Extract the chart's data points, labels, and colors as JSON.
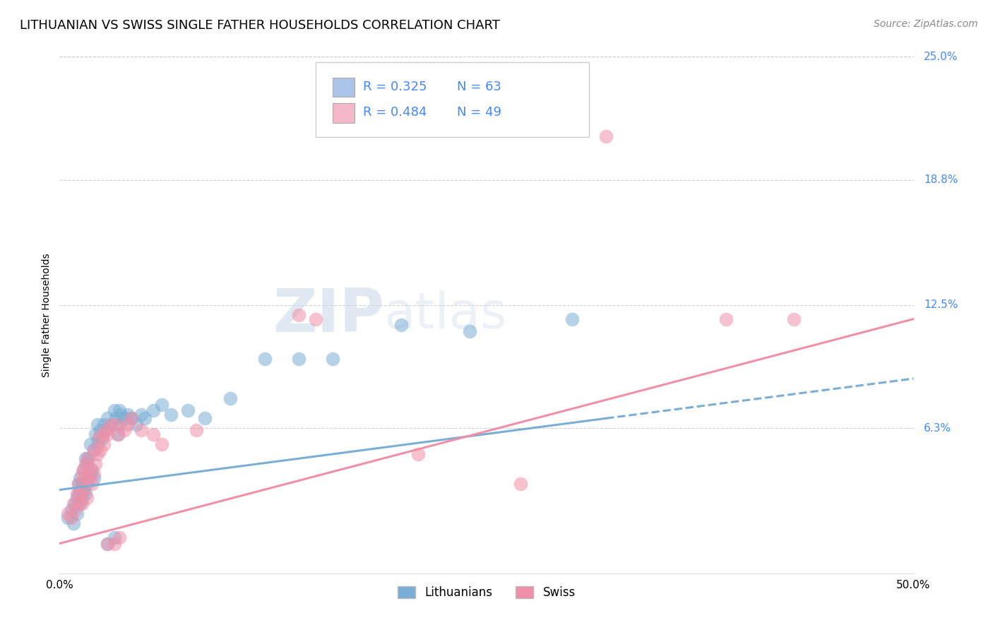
{
  "title": "LITHUANIAN VS SWISS SINGLE FATHER HOUSEHOLDS CORRELATION CHART",
  "source": "Source: ZipAtlas.com",
  "ylabel": "Single Father Households",
  "xlim": [
    0.0,
    0.5
  ],
  "ylim": [
    -0.01,
    0.25
  ],
  "ytick_labels": [
    "25.0%",
    "18.8%",
    "12.5%",
    "6.3%"
  ],
  "ytick_positions": [
    0.25,
    0.188,
    0.125,
    0.063
  ],
  "legend_entries": [
    {
      "label_r": "R = 0.325",
      "label_n": "N = 63",
      "color": "#aac4e8"
    },
    {
      "label_r": "R = 0.484",
      "label_n": "N = 49",
      "color": "#f4b8c8"
    }
  ],
  "watermark_zip": "ZIP",
  "watermark_atlas": "atlas",
  "background_color": "#ffffff",
  "grid_color": "#cccccc",
  "blue_color": "#7aaed4",
  "pink_color": "#f090a8",
  "label_color": "#4488ff",
  "blue_scatter": [
    [
      0.005,
      0.018
    ],
    [
      0.007,
      0.022
    ],
    [
      0.008,
      0.015
    ],
    [
      0.009,
      0.025
    ],
    [
      0.01,
      0.02
    ],
    [
      0.01,
      0.028
    ],
    [
      0.011,
      0.03
    ],
    [
      0.011,
      0.035
    ],
    [
      0.012,
      0.025
    ],
    [
      0.012,
      0.032
    ],
    [
      0.012,
      0.038
    ],
    [
      0.013,
      0.028
    ],
    [
      0.013,
      0.035
    ],
    [
      0.014,
      0.032
    ],
    [
      0.014,
      0.042
    ],
    [
      0.015,
      0.03
    ],
    [
      0.015,
      0.038
    ],
    [
      0.015,
      0.048
    ],
    [
      0.016,
      0.035
    ],
    [
      0.016,
      0.045
    ],
    [
      0.017,
      0.038
    ],
    [
      0.017,
      0.048
    ],
    [
      0.018,
      0.04
    ],
    [
      0.018,
      0.055
    ],
    [
      0.019,
      0.042
    ],
    [
      0.02,
      0.038
    ],
    [
      0.02,
      0.052
    ],
    [
      0.021,
      0.06
    ],
    [
      0.022,
      0.055
    ],
    [
      0.022,
      0.065
    ],
    [
      0.023,
      0.058
    ],
    [
      0.024,
      0.062
    ],
    [
      0.025,
      0.058
    ],
    [
      0.026,
      0.065
    ],
    [
      0.027,
      0.062
    ],
    [
      0.028,
      0.005
    ],
    [
      0.028,
      0.068
    ],
    [
      0.03,
      0.065
    ],
    [
      0.032,
      0.008
    ],
    [
      0.032,
      0.072
    ],
    [
      0.033,
      0.068
    ],
    [
      0.034,
      0.06
    ],
    [
      0.035,
      0.065
    ],
    [
      0.035,
      0.072
    ],
    [
      0.036,
      0.07
    ],
    [
      0.038,
      0.068
    ],
    [
      0.04,
      0.07
    ],
    [
      0.042,
      0.068
    ],
    [
      0.045,
      0.065
    ],
    [
      0.048,
      0.07
    ],
    [
      0.05,
      0.068
    ],
    [
      0.055,
      0.072
    ],
    [
      0.06,
      0.075
    ],
    [
      0.065,
      0.07
    ],
    [
      0.075,
      0.072
    ],
    [
      0.085,
      0.068
    ],
    [
      0.1,
      0.078
    ],
    [
      0.12,
      0.098
    ],
    [
      0.14,
      0.098
    ],
    [
      0.16,
      0.098
    ],
    [
      0.2,
      0.115
    ],
    [
      0.24,
      0.112
    ],
    [
      0.3,
      0.118
    ]
  ],
  "pink_scatter": [
    [
      0.005,
      0.02
    ],
    [
      0.007,
      0.018
    ],
    [
      0.008,
      0.025
    ],
    [
      0.009,
      0.022
    ],
    [
      0.01,
      0.03
    ],
    [
      0.011,
      0.025
    ],
    [
      0.011,
      0.035
    ],
    [
      0.012,
      0.03
    ],
    [
      0.013,
      0.025
    ],
    [
      0.013,
      0.04
    ],
    [
      0.014,
      0.032
    ],
    [
      0.014,
      0.042
    ],
    [
      0.015,
      0.038
    ],
    [
      0.015,
      0.045
    ],
    [
      0.016,
      0.028
    ],
    [
      0.016,
      0.048
    ],
    [
      0.017,
      0.038
    ],
    [
      0.018,
      0.042
    ],
    [
      0.019,
      0.035
    ],
    [
      0.02,
      0.04
    ],
    [
      0.02,
      0.052
    ],
    [
      0.021,
      0.045
    ],
    [
      0.022,
      0.05
    ],
    [
      0.023,
      0.058
    ],
    [
      0.024,
      0.052
    ],
    [
      0.025,
      0.06
    ],
    [
      0.026,
      0.055
    ],
    [
      0.027,
      0.062
    ],
    [
      0.028,
      0.005
    ],
    [
      0.028,
      0.06
    ],
    [
      0.03,
      0.065
    ],
    [
      0.032,
      0.005
    ],
    [
      0.033,
      0.065
    ],
    [
      0.034,
      0.06
    ],
    [
      0.035,
      0.008
    ],
    [
      0.038,
      0.062
    ],
    [
      0.04,
      0.065
    ],
    [
      0.042,
      0.068
    ],
    [
      0.048,
      0.062
    ],
    [
      0.055,
      0.06
    ],
    [
      0.06,
      0.055
    ],
    [
      0.08,
      0.062
    ],
    [
      0.14,
      0.12
    ],
    [
      0.15,
      0.118
    ],
    [
      0.21,
      0.05
    ],
    [
      0.27,
      0.035
    ],
    [
      0.32,
      0.21
    ],
    [
      0.39,
      0.118
    ],
    [
      0.43,
      0.118
    ]
  ],
  "blue_line_solid": [
    [
      0.0,
      0.032
    ],
    [
      0.32,
      0.068
    ]
  ],
  "blue_line_dash": [
    [
      0.32,
      0.068
    ],
    [
      0.5,
      0.088
    ]
  ],
  "pink_line": [
    [
      0.0,
      0.005
    ],
    [
      0.5,
      0.118
    ]
  ],
  "title_fontsize": 13,
  "axis_label_fontsize": 10,
  "tick_fontsize": 11,
  "source_fontsize": 10
}
